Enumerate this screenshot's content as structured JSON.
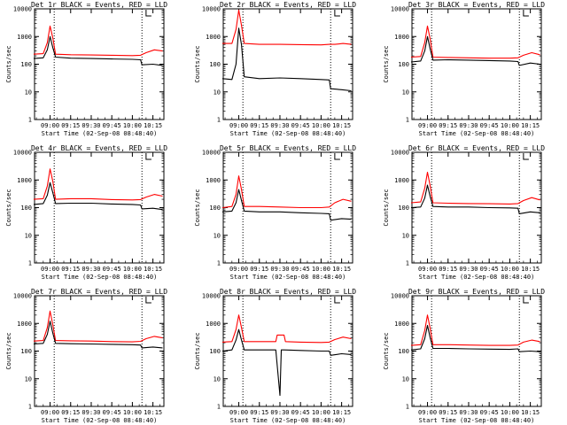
{
  "figure": {
    "x_ticks": [
      "09:00",
      "09:15",
      "09:30",
      "09:45",
      "10:00",
      "10:15"
    ],
    "y_ticks": [
      "1",
      "10",
      "100",
      "1000",
      "10000"
    ],
    "x_label": "Start Time (02-Sep-08 08:48:40)",
    "y_label": "Counts/sec",
    "colors": {
      "events": "#000000",
      "lld": "#ff0000"
    }
  },
  "chart_data": [
    {
      "type": "line",
      "title": "Det 1r BLACK = Events, RED = LLD",
      "xlabel": "Start Time (02-Sep-08 08:48:40)",
      "ylabel": "Counts/sec",
      "xlim": [
        "08:48:40",
        "10:23:00"
      ],
      "ylim": [
        1,
        10000
      ],
      "yscale": "log",
      "x_ticks": [
        "09:00",
        "09:15",
        "09:30",
        "09:45",
        "10:00",
        "10:15"
      ],
      "y_ticks": [
        "1",
        "10",
        "100",
        "1000",
        "10000"
      ],
      "vlines": [
        "09:03",
        "10:07"
      ],
      "series": [
        {
          "name": "Events",
          "color": "#000000",
          "x": [
            "08:48",
            "08:55",
            "08:58",
            "09:00",
            "09:02",
            "09:04",
            "09:15",
            "09:30",
            "09:45",
            "10:00",
            "10:06",
            "10:07",
            "10:15",
            "10:22"
          ],
          "y": [
            160,
            170,
            330,
            1000,
            400,
            180,
            165,
            160,
            155,
            150,
            145,
            95,
            100,
            90
          ]
        },
        {
          "name": "LLD",
          "color": "#ff0000",
          "x": [
            "08:48",
            "08:55",
            "08:58",
            "09:00",
            "09:02",
            "09:04",
            "09:15",
            "09:30",
            "09:45",
            "10:00",
            "10:06",
            "10:10",
            "10:16",
            "10:22"
          ],
          "y": [
            230,
            240,
            600,
            2400,
            900,
            230,
            220,
            215,
            210,
            205,
            210,
            260,
            330,
            300
          ]
        }
      ]
    },
    {
      "type": "line",
      "title": "Det 2r BLACK = Events, RED = LLD",
      "xlabel": "Start Time (02-Sep-08 08:48:40)",
      "ylabel": "Counts/sec",
      "xlim": [
        "08:48:40",
        "10:23:00"
      ],
      "ylim": [
        1,
        10000
      ],
      "yscale": "log",
      "x_ticks": [
        "09:00",
        "09:15",
        "09:30",
        "09:45",
        "10:00",
        "10:15"
      ],
      "y_ticks": [
        "1",
        "10",
        "100",
        "1000",
        "10000"
      ],
      "vlines": [
        "09:03",
        "10:07"
      ],
      "series": [
        {
          "name": "Events",
          "color": "#000000",
          "x": [
            "08:48",
            "08:55",
            "08:58",
            "09:00",
            "09:02",
            "09:04",
            "09:15",
            "09:30",
            "09:45",
            "10:00",
            "10:06",
            "10:07",
            "10:15",
            "10:22"
          ],
          "y": [
            30,
            28,
            100,
            2000,
            500,
            35,
            30,
            32,
            30,
            28,
            27,
            13,
            12,
            11
          ]
        },
        {
          "name": "LLD",
          "color": "#ff0000",
          "x": [
            "08:48",
            "08:55",
            "08:58",
            "09:00",
            "09:02",
            "09:04",
            "09:15",
            "09:30",
            "09:45",
            "10:00",
            "10:06",
            "10:10",
            "10:16",
            "10:22"
          ],
          "y": [
            560,
            560,
            1800,
            9000,
            2500,
            560,
            520,
            520,
            510,
            500,
            520,
            520,
            560,
            520
          ]
        }
      ]
    },
    {
      "type": "line",
      "title": "Det 3r BLACK = Events, RED = LLD",
      "xlabel": "Start Time (02-Sep-08 08:48:40)",
      "ylabel": "Counts/sec",
      "xlim": [
        "08:48:40",
        "10:23:00"
      ],
      "ylim": [
        1,
        10000
      ],
      "yscale": "log",
      "x_ticks": [
        "09:00",
        "09:15",
        "09:30",
        "09:45",
        "10:00",
        "10:15"
      ],
      "y_ticks": [
        "1",
        "10",
        "100",
        "1000",
        "10000"
      ],
      "vlines": [
        "09:03",
        "10:07"
      ],
      "series": [
        {
          "name": "Events",
          "color": "#000000",
          "x": [
            "08:48",
            "08:55",
            "08:58",
            "09:00",
            "09:02",
            "09:04",
            "09:15",
            "09:30",
            "09:45",
            "10:00",
            "10:06",
            "10:07",
            "10:15",
            "10:22"
          ],
          "y": [
            120,
            130,
            300,
            1000,
            350,
            140,
            145,
            140,
            135,
            130,
            125,
            90,
            110,
            100
          ]
        },
        {
          "name": "LLD",
          "color": "#ff0000",
          "x": [
            "08:48",
            "08:55",
            "08:58",
            "09:00",
            "09:02",
            "09:04",
            "09:15",
            "09:30",
            "09:45",
            "10:00",
            "10:06",
            "10:10",
            "10:16",
            "10:22"
          ],
          "y": [
            180,
            190,
            600,
            2400,
            800,
            180,
            175,
            170,
            165,
            165,
            170,
            210,
            260,
            220
          ]
        }
      ]
    },
    {
      "type": "line",
      "title": "Det 4r BLACK = Events, RED = LLD",
      "xlabel": "Start Time (02-Sep-08 08:48:40)",
      "ylabel": "Counts/sec",
      "xlim": [
        "08:48:40",
        "10:23:00"
      ],
      "ylim": [
        1,
        10000
      ],
      "yscale": "log",
      "x_ticks": [
        "09:00",
        "09:15",
        "09:30",
        "09:45",
        "10:00",
        "10:15"
      ],
      "y_ticks": [
        "1",
        "10",
        "100",
        "1000",
        "10000"
      ],
      "vlines": [
        "09:03",
        "10:07"
      ],
      "series": [
        {
          "name": "Events",
          "color": "#000000",
          "x": [
            "08:48",
            "08:55",
            "08:58",
            "09:00",
            "09:02",
            "09:04",
            "09:15",
            "09:30",
            "09:45",
            "10:00",
            "10:06",
            "10:07",
            "10:15",
            "10:22"
          ],
          "y": [
            130,
            140,
            280,
            800,
            350,
            140,
            145,
            145,
            135,
            130,
            125,
            90,
            95,
            85
          ]
        },
        {
          "name": "LLD",
          "color": "#ff0000",
          "x": [
            "08:48",
            "08:55",
            "08:58",
            "09:00",
            "09:02",
            "09:04",
            "09:15",
            "09:30",
            "09:45",
            "10:00",
            "10:06",
            "10:10",
            "10:16",
            "10:22"
          ],
          "y": [
            200,
            210,
            600,
            2500,
            900,
            200,
            210,
            210,
            195,
            190,
            195,
            240,
            300,
            260
          ]
        }
      ]
    },
    {
      "type": "line",
      "title": "Det 5r BLACK = Events, RED = LLD",
      "xlabel": "Start Time (02-Sep-08 08:48:40)",
      "ylabel": "Counts/sec",
      "xlim": [
        "08:48:40",
        "10:23:00"
      ],
      "ylim": [
        1,
        10000
      ],
      "yscale": "log",
      "x_ticks": [
        "09:00",
        "09:15",
        "09:30",
        "09:45",
        "10:00",
        "10:15"
      ],
      "y_ticks": [
        "1",
        "10",
        "100",
        "1000",
        "10000"
      ],
      "vlines": [
        "09:03",
        "10:07"
      ],
      "series": [
        {
          "name": "Events",
          "color": "#000000",
          "x": [
            "08:48",
            "08:55",
            "08:58",
            "09:00",
            "09:02",
            "09:04",
            "09:15",
            "09:30",
            "09:45",
            "10:00",
            "10:06",
            "10:07",
            "10:15",
            "10:22"
          ],
          "y": [
            70,
            75,
            150,
            450,
            180,
            75,
            70,
            70,
            65,
            62,
            60,
            35,
            40,
            38
          ]
        },
        {
          "name": "LLD",
          "color": "#ff0000",
          "x": [
            "08:48",
            "08:55",
            "08:58",
            "09:00",
            "09:02",
            "09:04",
            "09:15",
            "09:30",
            "09:45",
            "10:00",
            "10:06",
            "10:10",
            "10:16",
            "10:22"
          ],
          "y": [
            100,
            110,
            300,
            1400,
            450,
            110,
            110,
            105,
            100,
            100,
            105,
            150,
            200,
            170
          ]
        }
      ]
    },
    {
      "type": "line",
      "title": "Det 6r BLACK = Events, RED = LLD",
      "xlabel": "Start Time (02-Sep-08 08:48:40)",
      "ylabel": "Counts/sec",
      "xlim": [
        "08:48:40",
        "10:23:00"
      ],
      "ylim": [
        1,
        10000
      ],
      "yscale": "log",
      "x_ticks": [
        "09:00",
        "09:15",
        "09:30",
        "09:45",
        "10:00",
        "10:15"
      ],
      "y_ticks": [
        "1",
        "10",
        "100",
        "1000",
        "10000"
      ],
      "vlines": [
        "09:03",
        "10:07"
      ],
      "series": [
        {
          "name": "Events",
          "color": "#000000",
          "x": [
            "08:48",
            "08:55",
            "08:58",
            "09:00",
            "09:02",
            "09:04",
            "09:15",
            "09:30",
            "09:45",
            "10:00",
            "10:06",
            "10:07",
            "10:15",
            "10:22"
          ],
          "y": [
            100,
            105,
            220,
            650,
            250,
            110,
            105,
            105,
            100,
            98,
            95,
            60,
            70,
            65
          ]
        },
        {
          "name": "LLD",
          "color": "#ff0000",
          "x": [
            "08:48",
            "08:55",
            "08:58",
            "09:00",
            "09:02",
            "09:04",
            "09:15",
            "09:30",
            "09:45",
            "10:00",
            "10:06",
            "10:10",
            "10:16",
            "10:22"
          ],
          "y": [
            150,
            160,
            500,
            1900,
            600,
            150,
            145,
            140,
            138,
            135,
            140,
            180,
            230,
            190
          ]
        }
      ]
    },
    {
      "type": "line",
      "title": "Det 7r BLACK = Events, RED = LLD",
      "xlabel": "Start Time (02-Sep-08 08:48:40)",
      "ylabel": "Counts/sec",
      "xlim": [
        "08:48:40",
        "10:23:00"
      ],
      "ylim": [
        1,
        10000
      ],
      "yscale": "log",
      "x_ticks": [
        "09:00",
        "09:15",
        "09:30",
        "09:45",
        "10:00",
        "10:15"
      ],
      "y_ticks": [
        "1",
        "10",
        "100",
        "1000",
        "10000"
      ],
      "vlines": [
        "09:03",
        "10:07"
      ],
      "series": [
        {
          "name": "Events",
          "color": "#000000",
          "x": [
            "08:48",
            "08:55",
            "08:58",
            "09:00",
            "09:02",
            "09:04",
            "09:15",
            "09:30",
            "09:45",
            "10:00",
            "10:06",
            "10:07",
            "10:15",
            "10:22"
          ],
          "y": [
            180,
            190,
            400,
            1200,
            450,
            190,
            185,
            180,
            175,
            170,
            165,
            130,
            140,
            130
          ]
        },
        {
          "name": "LLD",
          "color": "#ff0000",
          "x": [
            "08:48",
            "08:55",
            "08:58",
            "09:00",
            "09:02",
            "09:04",
            "09:15",
            "09:30",
            "09:45",
            "10:00",
            "10:06",
            "10:10",
            "10:16",
            "10:22"
          ],
          "y": [
            230,
            240,
            700,
            2800,
            900,
            240,
            235,
            230,
            220,
            215,
            225,
            280,
            340,
            300
          ]
        }
      ]
    },
    {
      "type": "line",
      "title": "Det 8r BLACK = Events, RED = LLD",
      "xlabel": "Start Time (02-Sep-08 08:48:40)",
      "ylabel": "Counts/sec",
      "xlim": [
        "08:48:40",
        "10:23:00"
      ],
      "ylim": [
        1,
        10000
      ],
      "yscale": "log",
      "x_ticks": [
        "09:00",
        "09:15",
        "09:30",
        "09:45",
        "10:00",
        "10:15"
      ],
      "y_ticks": [
        "1",
        "10",
        "100",
        "1000",
        "10000"
      ],
      "vlines": [
        "09:03",
        "10:07"
      ],
      "series": [
        {
          "name": "Events",
          "color": "#000000",
          "x": [
            "08:48",
            "08:55",
            "08:58",
            "09:00",
            "09:02",
            "09:04",
            "09:15",
            "09:27",
            "09:30",
            "09:31",
            "09:33",
            "09:45",
            "10:00",
            "10:06",
            "10:07",
            "10:15",
            "10:22"
          ],
          "y": [
            100,
            110,
            250,
            600,
            250,
            110,
            110,
            110,
            2.5,
            110,
            110,
            105,
            100,
            100,
            70,
            80,
            75
          ]
        },
        {
          "name": "LLD",
          "color": "#ff0000",
          "x": [
            "08:48",
            "08:55",
            "08:58",
            "09:00",
            "09:02",
            "09:04",
            "09:15",
            "09:27",
            "09:28",
            "09:33",
            "09:34",
            "09:45",
            "10:00",
            "10:06",
            "10:10",
            "10:16",
            "10:22"
          ],
          "y": [
            210,
            220,
            600,
            2000,
            700,
            220,
            220,
            220,
            380,
            380,
            220,
            210,
            205,
            210,
            260,
            320,
            280
          ]
        }
      ]
    },
    {
      "type": "line",
      "title": "Det 9r BLACK = Events, RED = LLD",
      "xlabel": "Start Time (02-Sep-08 08:48:40)",
      "ylabel": "Counts/sec",
      "xlim": [
        "08:48:40",
        "10:23:00"
      ],
      "ylim": [
        1,
        10000
      ],
      "yscale": "log",
      "x_ticks": [
        "09:00",
        "09:15",
        "09:30",
        "09:45",
        "10:00",
        "10:15"
      ],
      "y_ticks": [
        "1",
        "10",
        "100",
        "1000",
        "10000"
      ],
      "vlines": [
        "09:03",
        "10:07"
      ],
      "series": [
        {
          "name": "Events",
          "color": "#000000",
          "x": [
            "08:48",
            "08:55",
            "08:58",
            "09:00",
            "09:02",
            "09:04",
            "09:15",
            "09:30",
            "09:45",
            "10:00",
            "10:06",
            "10:07",
            "10:15",
            "10:22"
          ],
          "y": [
            110,
            120,
            280,
            850,
            300,
            125,
            125,
            120,
            118,
            115,
            120,
            95,
            100,
            95
          ]
        },
        {
          "name": "LLD",
          "color": "#ff0000",
          "x": [
            "08:48",
            "08:55",
            "08:58",
            "09:00",
            "09:02",
            "09:04",
            "09:15",
            "09:30",
            "09:45",
            "10:00",
            "10:06",
            "10:10",
            "10:16",
            "10:22"
          ],
          "y": [
            160,
            170,
            550,
            2000,
            650,
            170,
            170,
            165,
            160,
            160,
            165,
            210,
            250,
            220
          ]
        }
      ]
    }
  ]
}
